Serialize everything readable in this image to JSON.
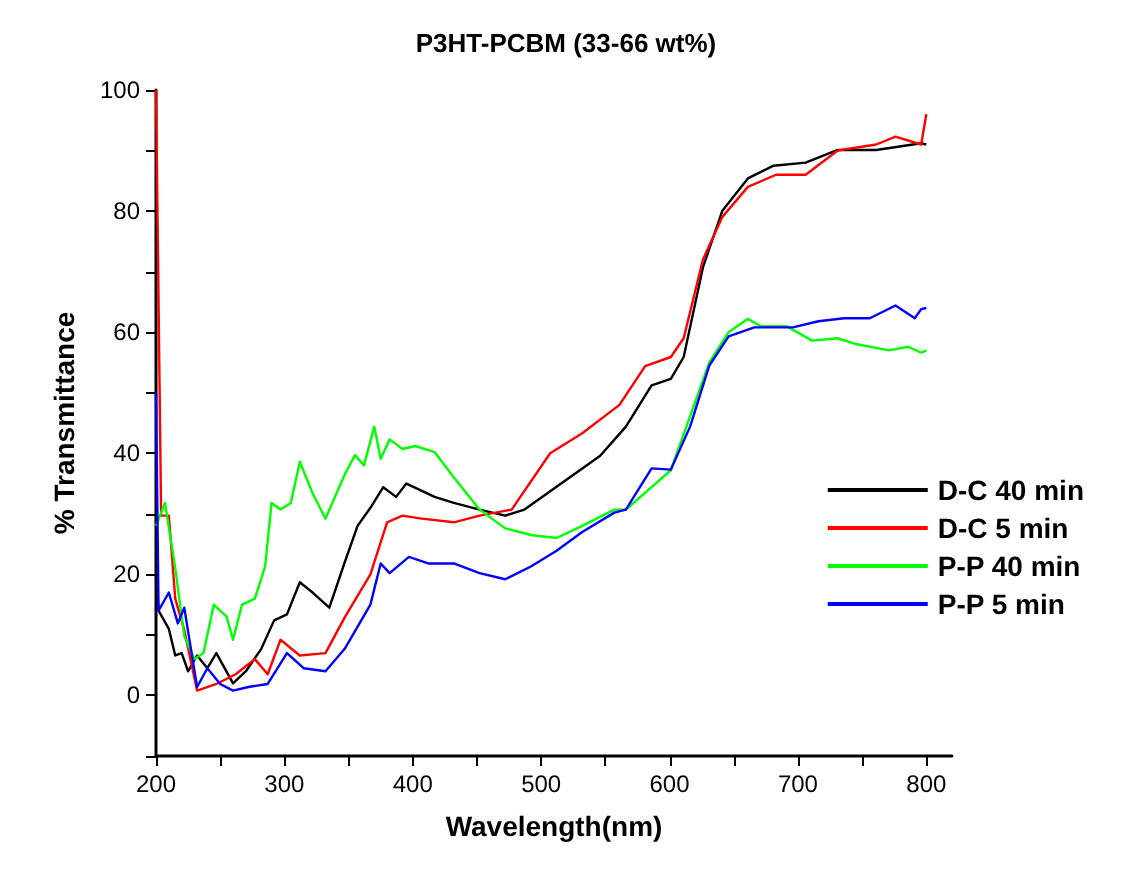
{
  "chart_data": {
    "type": "line",
    "title": "P3HT-PCBM (33-66 wt%)",
    "xlabel": "Wavelength(nm)",
    "ylabel": "% Transmittance",
    "xlim": [
      200,
      820
    ],
    "ylim": [
      -10,
      100
    ],
    "xticks": [
      200,
      {
        "value": 250,
        "label": null
      },
      300,
      {
        "value": 350,
        "label": null
      },
      400,
      {
        "value": 450,
        "label": null
      },
      500,
      {
        "value": 550,
        "label": null
      },
      600,
      {
        "value": 650,
        "label": null
      },
      700,
      {
        "value": 750,
        "label": null
      },
      800
    ],
    "yticks": [
      {
        "value": -10,
        "label": null
      },
      0,
      {
        "value": 10,
        "label": null
      },
      20,
      {
        "value": 30,
        "label": null
      },
      40,
      {
        "value": 50,
        "label": null
      },
      60,
      {
        "value": 70,
        "label": null
      },
      80,
      {
        "value": 90,
        "label": null
      },
      100
    ],
    "grid": false,
    "legend": "right",
    "marker": "none",
    "line_style": "solid",
    "series": [
      {
        "name": "D-C 40 min",
        "color": "#000000",
        "x": [
          200,
          202,
          210,
          215,
          220,
          225,
          232,
          240,
          247,
          260,
          270,
          282,
          292,
          302,
          312,
          322,
          335,
          347,
          357,
          367,
          377,
          387,
          395,
          405,
          417,
          432,
          452,
          472,
          487,
          546,
          566,
          586,
          601,
          611,
          626,
          641,
          661,
          681,
          706,
          731,
          761,
          796,
          800
        ],
        "values": [
          20,
          14,
          11,
          6.6,
          7,
          4,
          6.6,
          4.5,
          7,
          2,
          4,
          7.7,
          12.4,
          13.4,
          18.7,
          17,
          14.5,
          22,
          28,
          31,
          34.4,
          32.8,
          35,
          34,
          32.8,
          31.8,
          30.7,
          29.7,
          30.7,
          39.6,
          44.4,
          51.2,
          52.3,
          55.9,
          70.7,
          80,
          85.4,
          87.5,
          88,
          90.1,
          90.1,
          91.2,
          91
        ]
      },
      {
        "name": "D-C 5 min",
        "color": "#ff0000",
        "x": [
          200,
          204,
          210,
          215,
          222,
          232,
          247,
          262,
          277,
          287,
          297,
          312,
          332,
          347,
          367,
          380,
          392,
          407,
          432,
          452,
          477,
          507,
          532,
          561,
          566,
          581,
          601,
          611,
          626,
          641,
          661,
          683,
          706,
          731,
          761,
          776,
          796,
          800
        ],
        "values": [
          100,
          29.7,
          29.7,
          16,
          10.8,
          0.8,
          1.9,
          3.5,
          6,
          3.5,
          9.2,
          6.6,
          7,
          12.9,
          20,
          28.6,
          29.7,
          29.2,
          28.6,
          29.7,
          30.7,
          40,
          43.3,
          48,
          49.6,
          54.4,
          55.9,
          59,
          72,
          79,
          84,
          86,
          86,
          90,
          91,
          92.3,
          91,
          96
        ]
      },
      {
        "name": "P-P 40 min",
        "color": "#00ff00",
        "x": [
          200,
          207,
          215,
          222,
          230,
          237,
          245,
          255,
          260,
          267,
          277,
          285,
          290,
          297,
          305,
          312,
          322,
          332,
          347,
          355,
          362,
          370,
          375,
          382,
          392,
          402,
          417,
          432,
          452,
          472,
          492,
          512,
          532,
          557,
          566,
          601,
          631,
          646,
          661,
          671,
          691,
          711,
          731,
          746,
          771,
          786,
          796,
          800
        ],
        "values": [
          28,
          31.8,
          21,
          9.8,
          6,
          7,
          15,
          13,
          9.2,
          15,
          16,
          21.3,
          31.8,
          30.7,
          31.8,
          38.6,
          33.4,
          29.2,
          36.5,
          39.7,
          38,
          44.4,
          39.1,
          42.3,
          40.7,
          41.2,
          40.2,
          36,
          30.7,
          27.6,
          26.5,
          26,
          28,
          30.7,
          30.7,
          37.2,
          55,
          60,
          62.2,
          61,
          61,
          58.6,
          59,
          58,
          57,
          57.6,
          56.6,
          57
        ]
      },
      {
        "name": "P-P 5 min",
        "color": "#0000ff",
        "x": [
          200,
          202,
          210,
          217,
          222,
          232,
          240,
          250,
          260,
          272,
          287,
          302,
          315,
          332,
          347,
          367,
          375,
          382,
          397,
          412,
          432,
          452,
          472,
          492,
          512,
          532,
          557,
          566,
          586,
          601,
          616,
          631,
          646,
          666,
          696,
          716,
          736,
          756,
          776,
          791,
          796,
          800
        ],
        "values": [
          50,
          14,
          17,
          11.9,
          14.5,
          1.4,
          4.5,
          1.9,
          0.8,
          1.4,
          1.9,
          7,
          4.5,
          4,
          7.7,
          15,
          21.8,
          20.2,
          22.9,
          21.8,
          21.8,
          20.2,
          19.2,
          21.3,
          23.9,
          27,
          30.2,
          30.7,
          37.5,
          37.3,
          44.4,
          54.5,
          59.3,
          60.8,
          60.8,
          61.8,
          62.3,
          62.3,
          64.4,
          62.3,
          63.8,
          64
        ]
      }
    ]
  }
}
